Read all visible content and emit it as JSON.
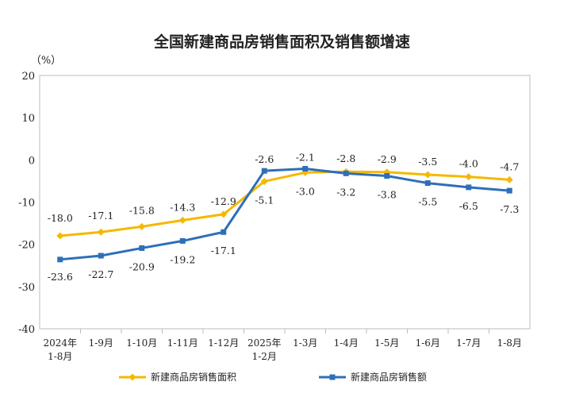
{
  "chart_data": {
    "type": "line",
    "title": "全国新建商品房销售面积及销售额增速",
    "ylabel": "（%）",
    "ylim": [
      -40,
      20
    ],
    "yticks": [
      20,
      10,
      0,
      -10,
      -20,
      -30,
      -40
    ],
    "grid": false,
    "legend_position": "bottom",
    "categories": [
      [
        "2024年",
        "1-8月"
      ],
      [
        "1-9月"
      ],
      [
        "1-10月"
      ],
      [
        "1-11月"
      ],
      [
        "1-12月"
      ],
      [
        "2025年",
        "1-2月"
      ],
      [
        "1-3月"
      ],
      [
        "1-4月"
      ],
      [
        "1-5月"
      ],
      [
        "1-6月"
      ],
      [
        "1-7月"
      ],
      [
        "1-8月"
      ]
    ],
    "series": [
      {
        "name": "新建商品房销售面积",
        "color": "#f5b800",
        "marker": "diamond",
        "values": [
          -18.0,
          -17.1,
          -15.8,
          -14.3,
          -12.9,
          -5.1,
          -3.0,
          -2.8,
          -2.9,
          -3.5,
          -4.0,
          -4.7
        ],
        "labels": [
          "-18.0",
          "-17.1",
          "-15.8",
          "-14.3",
          "-12.9",
          "-5.1",
          "-3.0",
          "-2.8",
          "-2.9",
          "-3.5",
          "-4.0",
          "-4.7"
        ]
      },
      {
        "name": "新建商品房销售额",
        "color": "#2e6fb8",
        "marker": "square",
        "values": [
          -23.6,
          -22.7,
          -20.9,
          -19.2,
          -17.1,
          -2.6,
          -2.1,
          -3.2,
          -3.8,
          -5.5,
          -6.5,
          -7.3
        ],
        "labels": [
          "-23.6",
          "-22.7",
          "-20.9",
          "-19.2",
          "-17.1",
          "-2.6",
          "-2.1",
          "-3.2",
          "-3.8",
          "-5.5",
          "-6.5",
          "-7.3"
        ]
      }
    ]
  }
}
